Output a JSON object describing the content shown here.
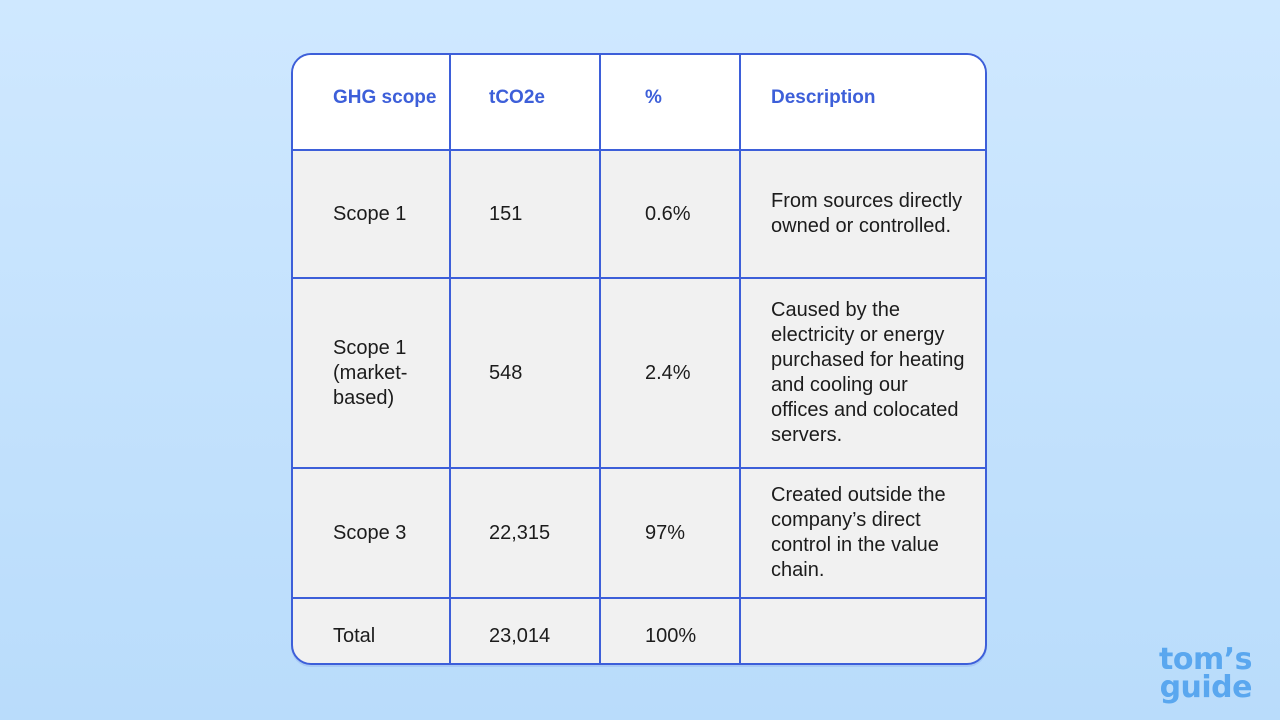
{
  "table": {
    "headers": [
      "GHG scope",
      "tCO2e",
      "%",
      "Description"
    ],
    "rows": [
      [
        "Scope 1",
        "151",
        "0.6%",
        "From sources directly owned or controlled."
      ],
      [
        "Scope 1 (market-based)",
        "548",
        "2.4%",
        "Caused by the electricity or energy purchased for heating and cooling our offices and colocated servers."
      ],
      [
        "Scope 3",
        "22,315",
        "97%",
        "Created outside the company’s direct control in the value chain."
      ],
      [
        "Total",
        "23,014",
        "100%",
        ""
      ]
    ]
  },
  "logo": {
    "line1": "tom’s",
    "line2": "guide"
  }
}
